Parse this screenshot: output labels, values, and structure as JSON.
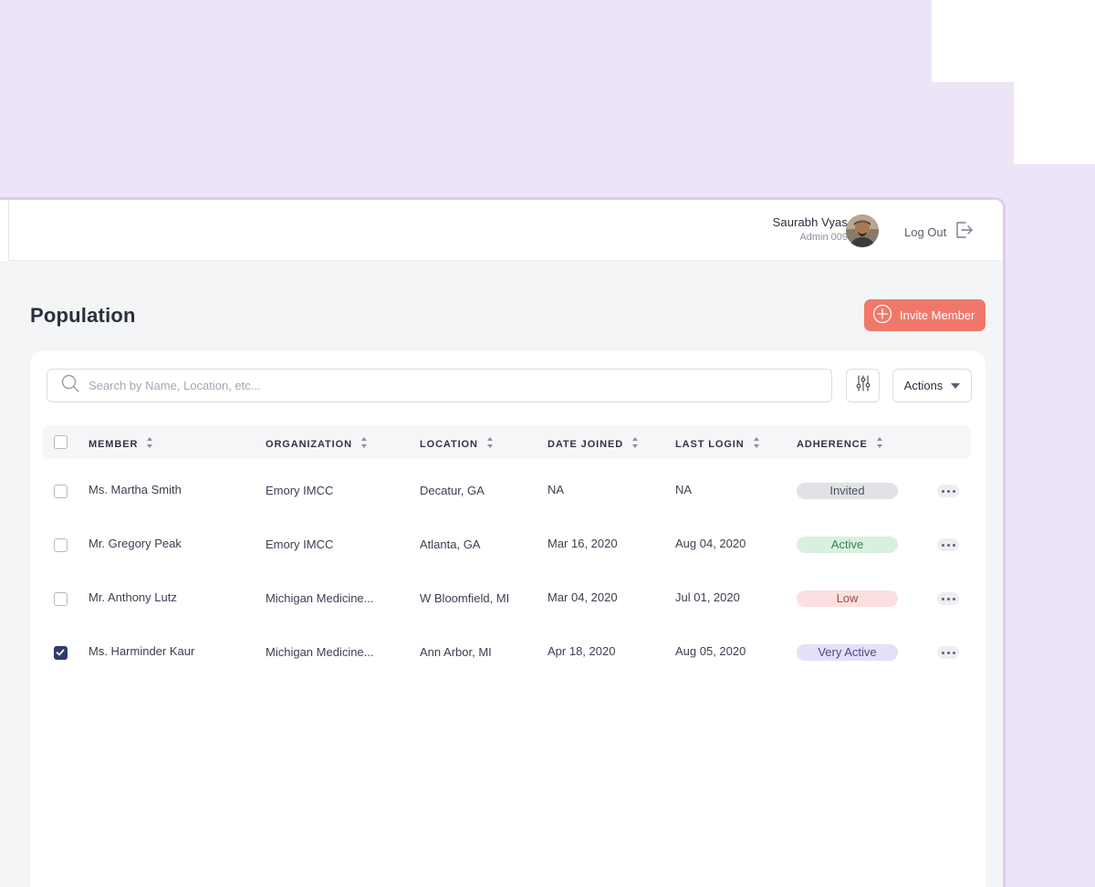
{
  "header": {
    "user_name": "Saurabh Vyas",
    "user_role": "Admin 009",
    "logout_label": "Log Out"
  },
  "page": {
    "title": "Population",
    "invite_label": "Invite Member",
    "search_placeholder": "Search by Name, Location, etc...",
    "actions_label": "Actions"
  },
  "table": {
    "columns": [
      "MEMBER",
      "ORGANIZATION",
      "LOCATION",
      "DATE JOINED",
      "LAST LOGIN",
      "ADHERENCE"
    ],
    "rows": [
      {
        "member": "Ms. Martha Smith",
        "organization": "Emory IMCC",
        "location": "Decatur, GA",
        "date_joined": "NA",
        "last_login": "NA",
        "adherence": "Invited",
        "checked": false
      },
      {
        "member": "Mr. Gregory Peak",
        "organization": "Emory IMCC",
        "location": "Atlanta, GA",
        "date_joined": "Mar 16, 2020",
        "last_login": "Aug 04, 2020",
        "adherence": "Active",
        "checked": false
      },
      {
        "member": "Mr. Anthony Lutz",
        "organization": "Michigan Medicine...",
        "location": "W Bloomfield, MI",
        "date_joined": "Mar 04, 2020",
        "last_login": "Jul 01, 2020",
        "adherence": "Low",
        "checked": false
      },
      {
        "member": "Ms. Harminder Kaur",
        "organization": "Michigan Medicine...",
        "location": "Ann Arbor, MI",
        "date_joined": "Apr 18, 2020",
        "last_login": "Aug 05, 2020",
        "adherence": "Very Active",
        "checked": true
      }
    ]
  },
  "colors": {
    "accent": "#f0786b",
    "background": "#ede4f8",
    "badge_invited": "#e1e2e6",
    "badge_active": "#d8f1df",
    "badge_low": "#fbe0df",
    "badge_very_active": "#e4e0f7"
  },
  "icons": {
    "search": "search-icon",
    "filter": "sliders-icon",
    "dropdown": "caret-down-icon",
    "logout": "logout-icon",
    "invite": "plus-circle-icon",
    "more": "more-icon"
  }
}
